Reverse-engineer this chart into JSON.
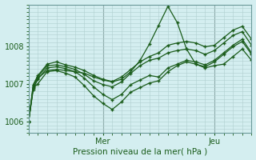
{
  "title": "",
  "xlabel": "Pression niveau de la mer( hPa )",
  "ylabel": "",
  "bg_color": "#d4eef0",
  "line_color": "#1a5c1a",
  "grid_color": "#b0cece",
  "ylim": [
    1005.7,
    1009.1
  ],
  "xlim": [
    0,
    48
  ],
  "xtick_positions": [
    16,
    40
  ],
  "xtick_labels": [
    "Mer",
    "Jeu"
  ],
  "yticks": [
    1006,
    1007,
    1008
  ],
  "series": [
    {
      "x": [
        0,
        1,
        2,
        4,
        6,
        8,
        10,
        12,
        14,
        16,
        18,
        20,
        22,
        24,
        26,
        28,
        30,
        32,
        34,
        36,
        38,
        40,
        42,
        44,
        46,
        48
      ],
      "y": [
        1006.0,
        1006.85,
        1007.15,
        1007.35,
        1007.38,
        1007.35,
        1007.32,
        1007.28,
        1007.18,
        1007.1,
        1007.05,
        1007.12,
        1007.32,
        1007.62,
        1008.05,
        1008.55,
        1009.05,
        1008.62,
        1007.92,
        1007.52,
        1007.42,
        1007.48,
        1007.52,
        1007.72,
        1007.92,
        1007.62
      ]
    },
    {
      "x": [
        0,
        1,
        2,
        4,
        6,
        8,
        10,
        12,
        14,
        16,
        18,
        20,
        22,
        24,
        26,
        28,
        30,
        32,
        34,
        36,
        38,
        40,
        42,
        44,
        46,
        48
      ],
      "y": [
        1006.0,
        1006.9,
        1007.12,
        1007.42,
        1007.45,
        1007.4,
        1007.32,
        1007.15,
        1006.92,
        1006.72,
        1006.58,
        1006.72,
        1006.98,
        1007.1,
        1007.22,
        1007.18,
        1007.42,
        1007.52,
        1007.62,
        1007.58,
        1007.5,
        1007.62,
        1007.82,
        1008.02,
        1008.18,
        1007.82
      ]
    },
    {
      "x": [
        0,
        1,
        2,
        4,
        6,
        8,
        10,
        12,
        14,
        16,
        18,
        20,
        22,
        24,
        26,
        28,
        30,
        32,
        34,
        36,
        38,
        40,
        42,
        44,
        46,
        48
      ],
      "y": [
        1006.0,
        1006.88,
        1007.0,
        1007.32,
        1007.35,
        1007.28,
        1007.18,
        1006.95,
        1006.68,
        1006.48,
        1006.32,
        1006.52,
        1006.78,
        1006.9,
        1007.02,
        1007.08,
        1007.32,
        1007.48,
        1007.58,
        1007.52,
        1007.45,
        1007.58,
        1007.78,
        1007.98,
        1008.12,
        1007.78
      ]
    },
    {
      "x": [
        0,
        1,
        2,
        4,
        6,
        8,
        10,
        12,
        14,
        16,
        18,
        20,
        22,
        24,
        26,
        28,
        30,
        32,
        34,
        36,
        38,
        40,
        42,
        44,
        46,
        48
      ],
      "y": [
        1006.0,
        1006.95,
        1007.18,
        1007.48,
        1007.5,
        1007.45,
        1007.38,
        1007.25,
        1007.08,
        1006.98,
        1006.92,
        1007.05,
        1007.28,
        1007.48,
        1007.62,
        1007.68,
        1007.82,
        1007.88,
        1007.92,
        1007.88,
        1007.78,
        1007.88,
        1008.08,
        1008.28,
        1008.38,
        1008.02
      ]
    },
    {
      "x": [
        0,
        1,
        2,
        4,
        6,
        8,
        10,
        12,
        14,
        16,
        18,
        20,
        22,
        24,
        26,
        28,
        30,
        32,
        34,
        36,
        38,
        40,
        42,
        44,
        46,
        48
      ],
      "y": [
        1006.0,
        1006.98,
        1007.22,
        1007.52,
        1007.58,
        1007.5,
        1007.44,
        1007.35,
        1007.22,
        1007.12,
        1007.06,
        1007.18,
        1007.38,
        1007.58,
        1007.72,
        1007.82,
        1008.02,
        1008.08,
        1008.12,
        1008.08,
        1007.98,
        1008.02,
        1008.22,
        1008.42,
        1008.52,
        1008.18
      ]
    }
  ]
}
